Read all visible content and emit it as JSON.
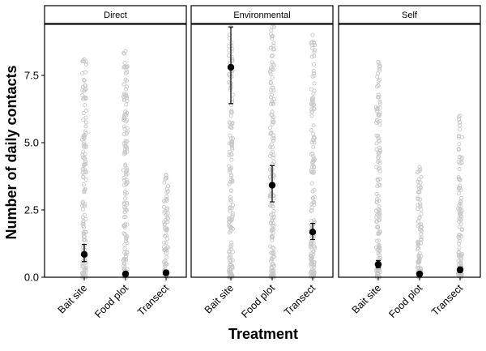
{
  "chart_data": {
    "type": "scatter",
    "xlabel": "Treatment",
    "ylabel": "Number of daily contacts",
    "categories": [
      "Bait site",
      "Food plot",
      "Transect"
    ],
    "ylim": [
      0,
      9.3
    ],
    "yticks": [
      0.0,
      2.5,
      5.0,
      7.5
    ],
    "ytick_labels": [
      "0.0",
      "2.5",
      "5.0",
      "7.5"
    ],
    "grid": false,
    "legend": "none",
    "colors": {
      "raw_points": "#c8c8c8",
      "means": "#000000",
      "strip_fill": "#ffffff"
    },
    "panels": [
      {
        "name": "Direct",
        "means": [
          {
            "category": "Bait site",
            "mean": 0.85,
            "lower": 0.58,
            "upper": 1.22
          },
          {
            "category": "Food plot",
            "mean": 0.12,
            "lower": 0.05,
            "upper": 0.2
          },
          {
            "category": "Transect",
            "mean": 0.16,
            "lower": 0.08,
            "upper": 0.26
          }
        ],
        "raw_max": [
          8.1,
          8.4,
          3.8
        ]
      },
      {
        "name": "Environmental",
        "means": [
          {
            "category": "Bait site",
            "mean": 7.8,
            "lower": 6.45,
            "upper": 9.3
          },
          {
            "category": "Food plot",
            "mean": 3.42,
            "lower": 2.8,
            "upper": 4.15
          },
          {
            "category": "Transect",
            "mean": 1.68,
            "lower": 1.4,
            "upper": 2.0
          }
        ],
        "raw_max": [
          9.3,
          9.3,
          9.0
        ]
      },
      {
        "name": "Self",
        "means": [
          {
            "category": "Bait site",
            "mean": 0.48,
            "lower": 0.35,
            "upper": 0.62
          },
          {
            "category": "Food plot",
            "mean": 0.12,
            "lower": 0.06,
            "upper": 0.2
          },
          {
            "category": "Transect",
            "mean": 0.27,
            "lower": 0.18,
            "upper": 0.38
          }
        ],
        "raw_max": [
          8.0,
          4.1,
          6.0
        ]
      }
    ]
  }
}
